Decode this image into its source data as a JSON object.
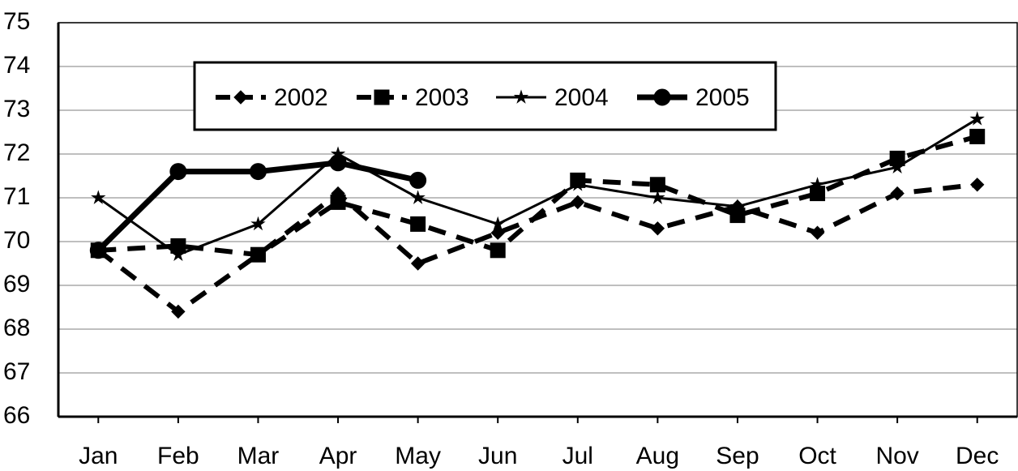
{
  "chart_data": {
    "type": "line",
    "categories": [
      "Jan",
      "Feb",
      "Mar",
      "Apr",
      "May",
      "Jun",
      "Jul",
      "Aug",
      "Sep",
      "Oct",
      "Nov",
      "Dec"
    ],
    "series": [
      {
        "name": "2002",
        "color": "#000000",
        "marker": "diamond",
        "dash": true,
        "values": [
          69.8,
          68.4,
          69.7,
          71.1,
          69.5,
          70.2,
          70.9,
          70.3,
          70.8,
          70.2,
          71.1,
          71.3
        ]
      },
      {
        "name": "2003",
        "color": "#000000",
        "marker": "square",
        "dash": true,
        "values": [
          69.8,
          69.9,
          69.7,
          70.9,
          70.4,
          69.8,
          71.4,
          71.3,
          70.6,
          71.1,
          71.9,
          72.4
        ]
      },
      {
        "name": "2004",
        "color": "#000000",
        "marker": "star",
        "dash": false,
        "values": [
          71.0,
          69.7,
          70.4,
          72.0,
          71.0,
          70.4,
          71.3,
          71.0,
          70.8,
          71.3,
          71.7,
          72.8
        ]
      },
      {
        "name": "2005",
        "color": "#000000",
        "marker": "circle",
        "dash": false,
        "values": [
          69.8,
          71.6,
          71.6,
          71.8,
          71.4,
          null,
          null,
          null,
          null,
          null,
          null,
          null
        ]
      }
    ],
    "ylim": [
      66,
      75
    ],
    "yticks": [
      66,
      67,
      68,
      69,
      70,
      71,
      72,
      73,
      74,
      75
    ],
    "grid": true
  }
}
